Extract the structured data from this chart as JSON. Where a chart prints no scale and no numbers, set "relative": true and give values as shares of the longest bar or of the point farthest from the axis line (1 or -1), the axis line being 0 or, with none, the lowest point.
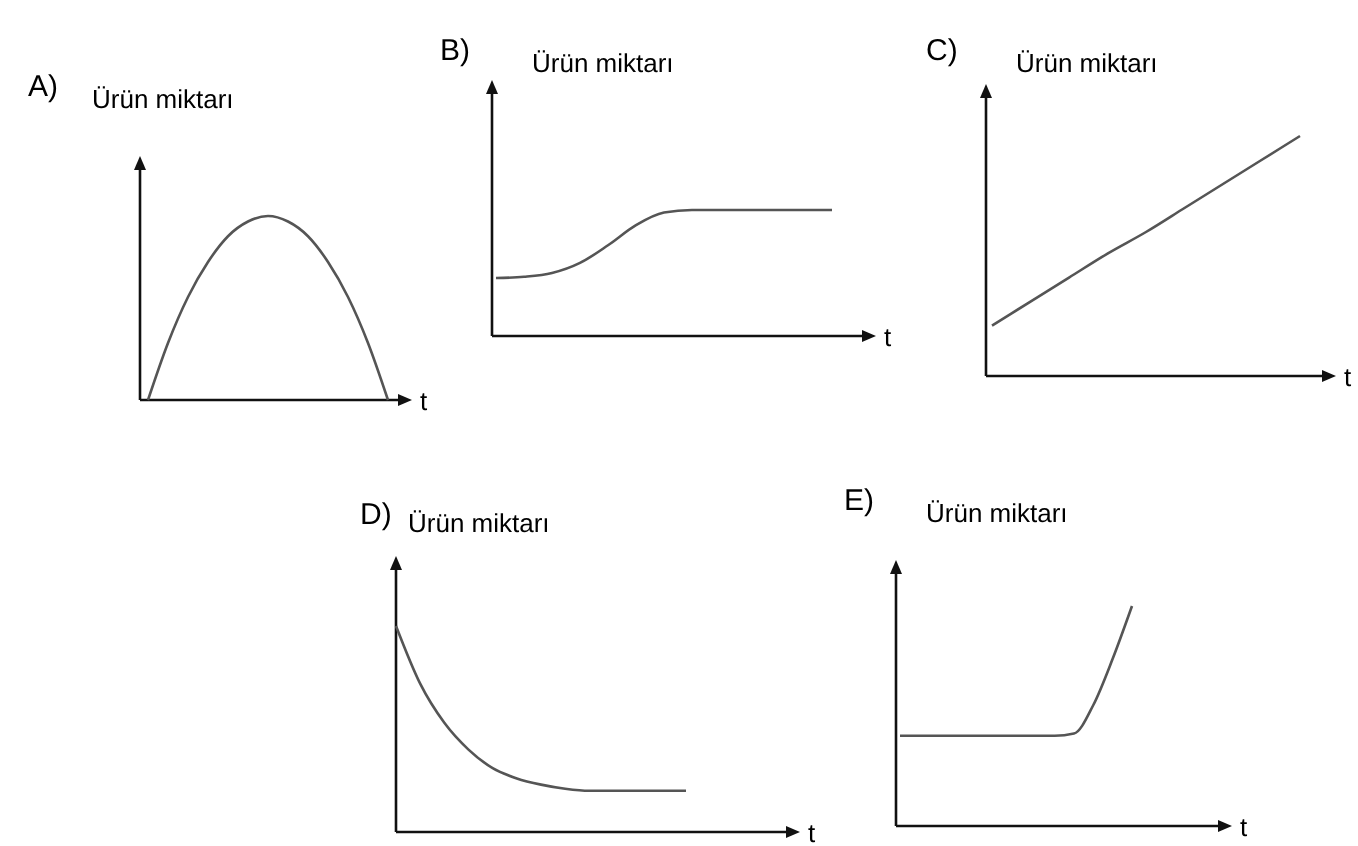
{
  "chart_data": [
    {
      "type": "line",
      "title": "A)",
      "ylabel": "Ürün miktarı",
      "xlabel": "t",
      "relative": true,
      "categories": [
        null,
        null,
        null,
        null,
        null,
        null,
        null,
        null,
        null,
        null,
        null,
        null,
        null
      ],
      "series": [
        {
          "color": "#555555",
          "values": [
            0,
            0.31,
            0.56,
            0.75,
            0.89,
            0.97,
            1,
            0.97,
            0.89,
            0.75,
            0.56,
            0.31,
            0
          ]
        }
      ]
    },
    {
      "type": "line",
      "title": "B)",
      "ylabel": "Ürün miktarı",
      "xlabel": "t",
      "relative": true,
      "categories": [
        null,
        null,
        null,
        null,
        null,
        null,
        null,
        null,
        null,
        null,
        null,
        null,
        null
      ],
      "series": [
        {
          "color": "#555555",
          "values": [
            0.46,
            0.47,
            0.5,
            0.58,
            0.72,
            0.88,
            0.98,
            1,
            1,
            1,
            1,
            1,
            1
          ]
        }
      ]
    },
    {
      "type": "line",
      "title": "C)",
      "ylabel": "Ürün miktarı",
      "xlabel": "t",
      "relative": true,
      "categories": [
        null,
        null,
        null,
        null,
        null,
        null,
        null,
        null,
        null
      ],
      "series": [
        {
          "color": "#555555",
          "values": [
            0.21,
            0.31,
            0.41,
            0.51,
            0.6,
            0.7,
            0.8,
            0.9,
            1
          ]
        }
      ]
    },
    {
      "type": "line",
      "title": "D)",
      "ylabel": "Ürün miktarı",
      "xlabel": "t",
      "relative": true,
      "categories": [
        null,
        null,
        null,
        null,
        null,
        null,
        null,
        null,
        null,
        null,
        null,
        null,
        null
      ],
      "series": [
        {
          "color": "#555555",
          "values": [
            1,
            0.72,
            0.53,
            0.4,
            0.31,
            0.26,
            0.23,
            0.21,
            0.2,
            0.2,
            0.2,
            0.2,
            0.2
          ]
        }
      ]
    },
    {
      "type": "line",
      "title": "E)",
      "ylabel": "Ürün miktarı",
      "xlabel": "t",
      "relative": true,
      "categories": [
        null,
        null,
        null,
        null,
        null,
        null,
        null,
        null,
        null,
        null,
        null,
        null,
        null
      ],
      "series": [
        {
          "color": "#555555",
          "values": [
            0.41,
            0.41,
            0.41,
            0.41,
            0.41,
            0.41,
            0.41,
            0.41,
            0.41,
            0.42,
            0.55,
            0.76,
            1
          ]
        }
      ]
    }
  ]
}
